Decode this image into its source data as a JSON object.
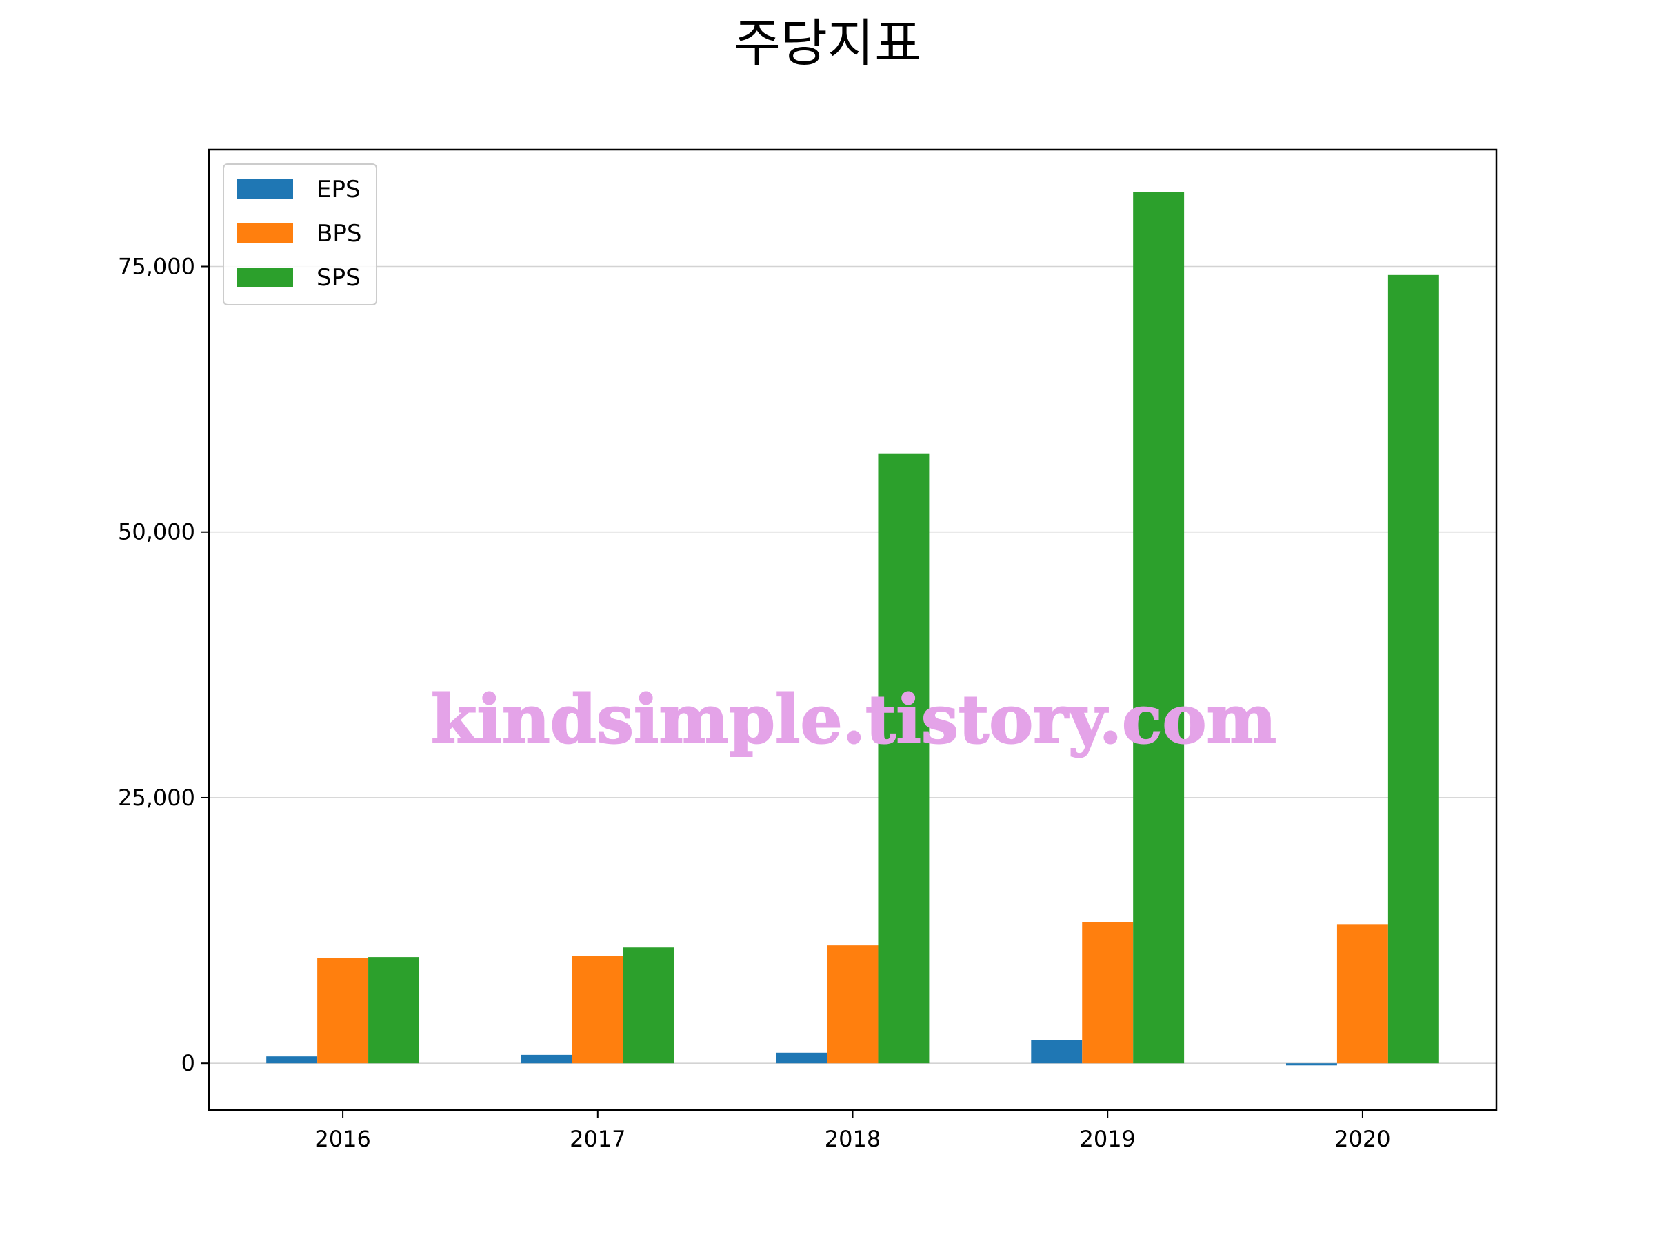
{
  "chart_data": {
    "type": "bar",
    "title": "주당지표",
    "categories": [
      "2016",
      "2017",
      "2018",
      "2019",
      "2020"
    ],
    "series": [
      {
        "name": "EPS",
        "color": "#1f77b4",
        "values": [
          650,
          800,
          1000,
          2200,
          -200
        ]
      },
      {
        "name": "BPS",
        "color": "#ff7f0e",
        "values": [
          9900,
          10100,
          11100,
          13300,
          13100
        ]
      },
      {
        "name": "SPS",
        "color": "#2ca02c",
        "values": [
          10000,
          10900,
          57400,
          82000,
          74200
        ]
      }
    ],
    "ylim": [
      -4400,
      86000
    ],
    "yticks": [
      0,
      25000,
      50000,
      75000
    ],
    "ytick_labels": [
      "0",
      "25,000",
      "50,000",
      "75,000"
    ],
    "grid": "horizontal",
    "legend_position": "top-left"
  },
  "watermark": "kindsimple.tistory.com"
}
